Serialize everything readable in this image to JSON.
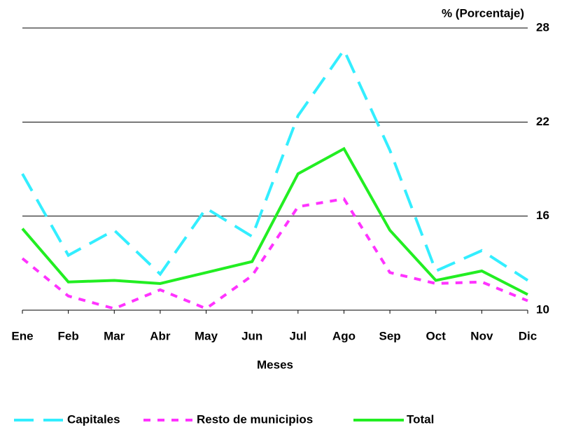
{
  "chart_data": {
    "type": "line",
    "y_label": "% (Porcentaje)",
    "x_label": "Meses",
    "categories": [
      "Ene",
      "Feb",
      "Mar",
      "Abr",
      "May",
      "Jun",
      "Jul",
      "Ago",
      "Sep",
      "Oct",
      "Nov",
      "Dic"
    ],
    "series": [
      {
        "name": "Capitales",
        "color": "#33eeff",
        "dash": "dashed",
        "values": [
          18.7,
          13.5,
          15.1,
          12.3,
          16.5,
          14.7,
          22.4,
          26.6,
          20.2,
          12.5,
          13.8,
          11.9
        ]
      },
      {
        "name": "Resto de municipios",
        "color": "#ff33ff",
        "dash": "dotted",
        "values": [
          13.3,
          10.9,
          10.1,
          11.3,
          10.1,
          12.2,
          16.6,
          17.1,
          12.4,
          11.7,
          11.8,
          10.6
        ]
      },
      {
        "name": "Total",
        "color": "#22ee22",
        "dash": "solid",
        "values": [
          15.2,
          11.8,
          11.9,
          11.7,
          12.4,
          13.1,
          18.7,
          20.3,
          15.1,
          11.9,
          12.5,
          11.0
        ]
      }
    ],
    "ylim": [
      10,
      28
    ],
    "yticks": [
      10,
      16,
      22,
      28
    ],
    "grid": true,
    "y_axis_side": "right",
    "legend": "bottom"
  }
}
